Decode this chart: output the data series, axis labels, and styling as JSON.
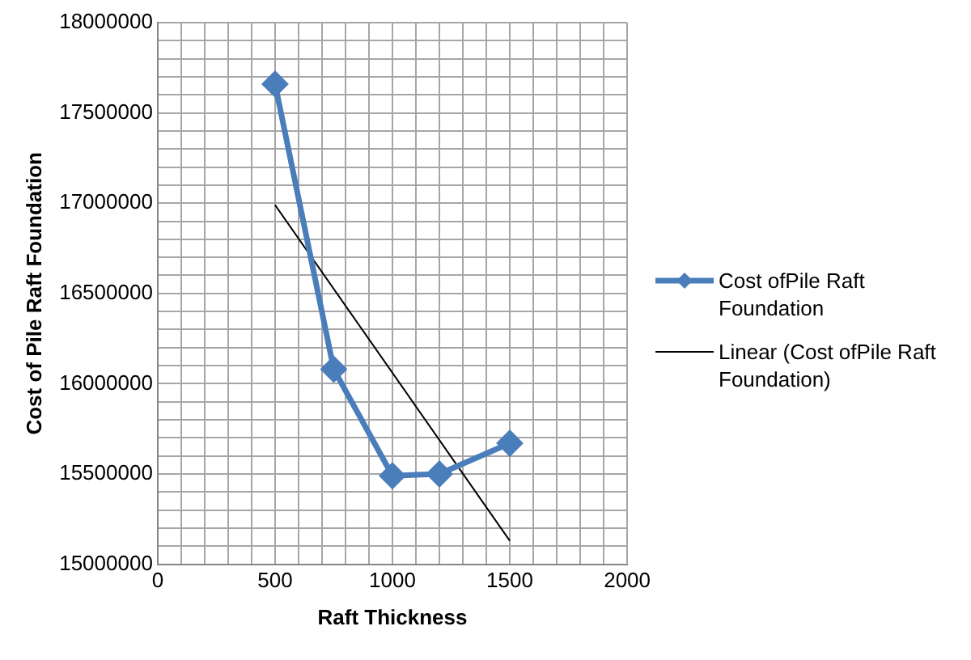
{
  "chart_data": {
    "type": "line",
    "xlabel": "Raft Thickness",
    "ylabel": "Cost of Pile Raft Foundation",
    "xlim": [
      0,
      2000
    ],
    "xticks": [
      0,
      {
        "value": 100,
        "label": null
      },
      {
        "value": 200,
        "label": null
      },
      {
        "value": 300,
        "label": null
      },
      {
        "value": 400,
        "label": null
      },
      500,
      {
        "value": 600,
        "label": null
      },
      {
        "value": 700,
        "label": null
      },
      {
        "value": 800,
        "label": null
      },
      {
        "value": 900,
        "label": null
      },
      1000,
      {
        "value": 1100,
        "label": null
      },
      {
        "value": 1200,
        "label": null
      },
      {
        "value": 1300,
        "label": null
      },
      {
        "value": 1400,
        "label": null
      },
      1500,
      {
        "value": 1600,
        "label": null
      },
      {
        "value": 1700,
        "label": null
      },
      {
        "value": 1800,
        "label": null
      },
      {
        "value": 1900,
        "label": null
      },
      2000
    ],
    "ylim": [
      15000000,
      18000000
    ],
    "yticks": [
      15000000,
      {
        "value": 15100000,
        "label": null
      },
      {
        "value": 15200000,
        "label": null
      },
      {
        "value": 15300000,
        "label": null
      },
      {
        "value": 15400000,
        "label": null
      },
      15500000,
      {
        "value": 15600000,
        "label": null
      },
      {
        "value": 15700000,
        "label": null
      },
      {
        "value": 15800000,
        "label": null
      },
      {
        "value": 15900000,
        "label": null
      },
      16000000,
      {
        "value": 16100000,
        "label": null
      },
      {
        "value": 16200000,
        "label": null
      },
      {
        "value": 16300000,
        "label": null
      },
      {
        "value": 16400000,
        "label": null
      },
      16500000,
      {
        "value": 16600000,
        "label": null
      },
      {
        "value": 16700000,
        "label": null
      },
      {
        "value": 16800000,
        "label": null
      },
      {
        "value": 16900000,
        "label": null
      },
      17000000,
      {
        "value": 17100000,
        "label": null
      },
      {
        "value": 17200000,
        "label": null
      },
      {
        "value": 17300000,
        "label": null
      },
      {
        "value": 17400000,
        "label": null
      },
      17500000,
      {
        "value": 17600000,
        "label": null
      },
      {
        "value": 17700000,
        "label": null
      },
      {
        "value": 17800000,
        "label": null
      },
      {
        "value": 17900000,
        "label": null
      },
      18000000
    ],
    "grid": true,
    "legend": "right",
    "series": [
      {
        "name": "Cost ofPile Raft Foundation",
        "color": "#4a7ebb",
        "x": [
          500,
          750,
          1000,
          1200,
          1500
        ],
        "values": [
          17660000,
          16080000,
          15490000,
          15500000,
          15670000
        ],
        "marker": "diamond"
      },
      {
        "name": "Linear (Cost ofPile Raft Foundation)",
        "color": "#000000",
        "x": [
          500,
          1500
        ],
        "values": [
          16990000,
          15130000
        ],
        "marker": "none"
      }
    ]
  }
}
